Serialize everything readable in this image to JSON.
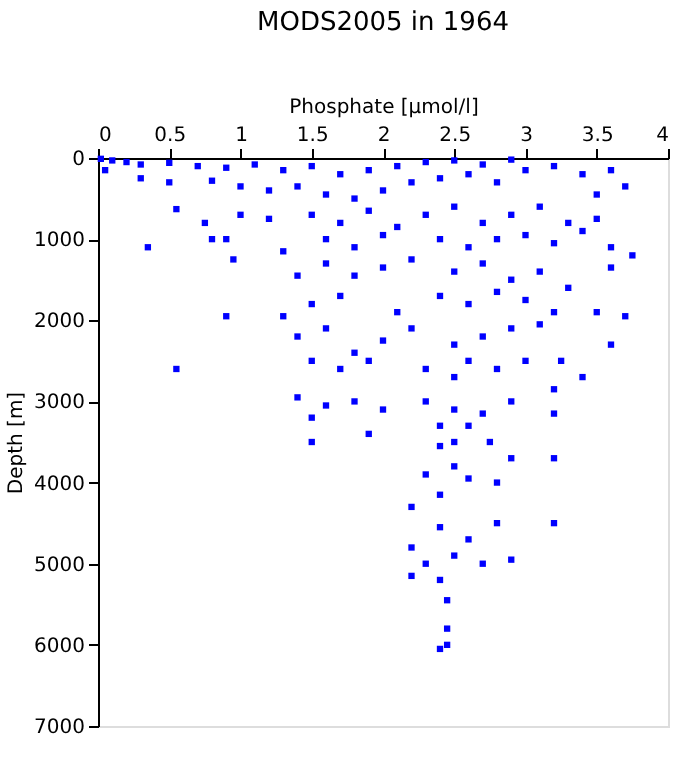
{
  "chart_data": {
    "type": "scatter",
    "title": "MODS2005 in 1964",
    "xlabel": "Phosphate [µmol/l]",
    "ylabel": "Depth [m]",
    "xlim": [
      0,
      4
    ],
    "xticks": [
      0,
      0.5,
      1,
      1.5,
      2,
      2.5,
      3,
      3.5,
      4
    ],
    "ylim": [
      7000,
      0
    ],
    "yticks": [
      0,
      1000,
      2000,
      3000,
      4000,
      5000,
      6000,
      7000
    ],
    "grid": false,
    "marker": "square",
    "series": [
      {
        "color": "#0000ff",
        "x": [
          0.02,
          0.1,
          0.2,
          0.3,
          0.5,
          0.7,
          0.9,
          1.1,
          1.3,
          1.5,
          1.7,
          1.9,
          2.1,
          2.3,
          2.5,
          2.7,
          2.9,
          0.05,
          0.3,
          0.5,
          0.8,
          1.0,
          1.2,
          1.4,
          1.6,
          1.8,
          2.0,
          2.2,
          2.4,
          2.6,
          2.8,
          3.0,
          3.2,
          3.4,
          3.6,
          3.7,
          3.5,
          0.75,
          0.55,
          1.0,
          1.2,
          1.5,
          1.7,
          1.9,
          2.1,
          2.3,
          2.5,
          2.7,
          2.9,
          3.1,
          3.3,
          3.5,
          0.35,
          0.8,
          0.9,
          1.3,
          1.6,
          1.8,
          2.0,
          2.4,
          2.6,
          2.8,
          3.0,
          3.2,
          3.4,
          3.6,
          3.75,
          0.95,
          1.4,
          1.6,
          1.8,
          2.0,
          2.2,
          2.5,
          2.7,
          2.9,
          3.1,
          3.3,
          3.6,
          1.5,
          1.7,
          2.1,
          2.4,
          2.6,
          2.8,
          3.0,
          3.2,
          0.9,
          1.3,
          3.5,
          3.7,
          1.4,
          1.6,
          1.8,
          2.0,
          2.2,
          2.5,
          2.7,
          2.9,
          3.1,
          3.6,
          0.55,
          1.5,
          1.7,
          1.9,
          2.3,
          2.5,
          2.6,
          2.8,
          3.0,
          3.4,
          3.25,
          1.4,
          1.5,
          1.6,
          1.8,
          2.0,
          2.3,
          2.4,
          2.5,
          2.6,
          2.7,
          2.9,
          3.2,
          3.2,
          1.5,
          1.9,
          2.4,
          2.5,
          2.75,
          2.9,
          3.2,
          2.3,
          2.5,
          2.6,
          2.8,
          2.4,
          2.2,
          2.4,
          2.6,
          2.8,
          3.2,
          2.2,
          2.3,
          2.5,
          2.7,
          2.9,
          2.2,
          2.4,
          2.45,
          2.45,
          2.4,
          2.45
        ],
        "values": [
          10,
          30,
          50,
          80,
          60,
          100,
          120,
          80,
          150,
          100,
          200,
          150,
          100,
          50,
          30,
          80,
          20,
          150,
          250,
          300,
          280,
          350,
          400,
          350,
          450,
          500,
          400,
          300,
          250,
          200,
          300,
          150,
          100,
          200,
          150,
          350,
          450,
          800,
          630,
          700,
          750,
          700,
          800,
          650,
          850,
          700,
          600,
          800,
          700,
          600,
          800,
          750,
          1100,
          1000,
          1000,
          1150,
          1000,
          1100,
          950,
          1000,
          1100,
          1000,
          950,
          1050,
          900,
          1100,
          1200,
          1250,
          1450,
          1300,
          1450,
          1350,
          1250,
          1400,
          1300,
          1500,
          1400,
          1600,
          1350,
          1800,
          1700,
          1900,
          1700,
          1800,
          1650,
          1750,
          1900,
          1950,
          1950,
          1900,
          1950,
          2200,
          2100,
          2400,
          2250,
          2100,
          2300,
          2200,
          2100,
          2050,
          2300,
          2600,
          2500,
          2600,
          2500,
          2600,
          2700,
          2500,
          2600,
          2500,
          2700,
          2500,
          2950,
          3200,
          3050,
          3000,
          3100,
          3000,
          3300,
          3100,
          3300,
          3150,
          3000,
          2850,
          3150,
          3500,
          3400,
          3550,
          3500,
          3500,
          3700,
          3700,
          3900,
          3800,
          3950,
          4000,
          4150,
          4300,
          4550,
          4700,
          4500,
          4500,
          4800,
          5000,
          4900,
          5000,
          4950,
          5150,
          5200,
          5450,
          5800,
          6050,
          6000
        ]
      }
    ]
  }
}
